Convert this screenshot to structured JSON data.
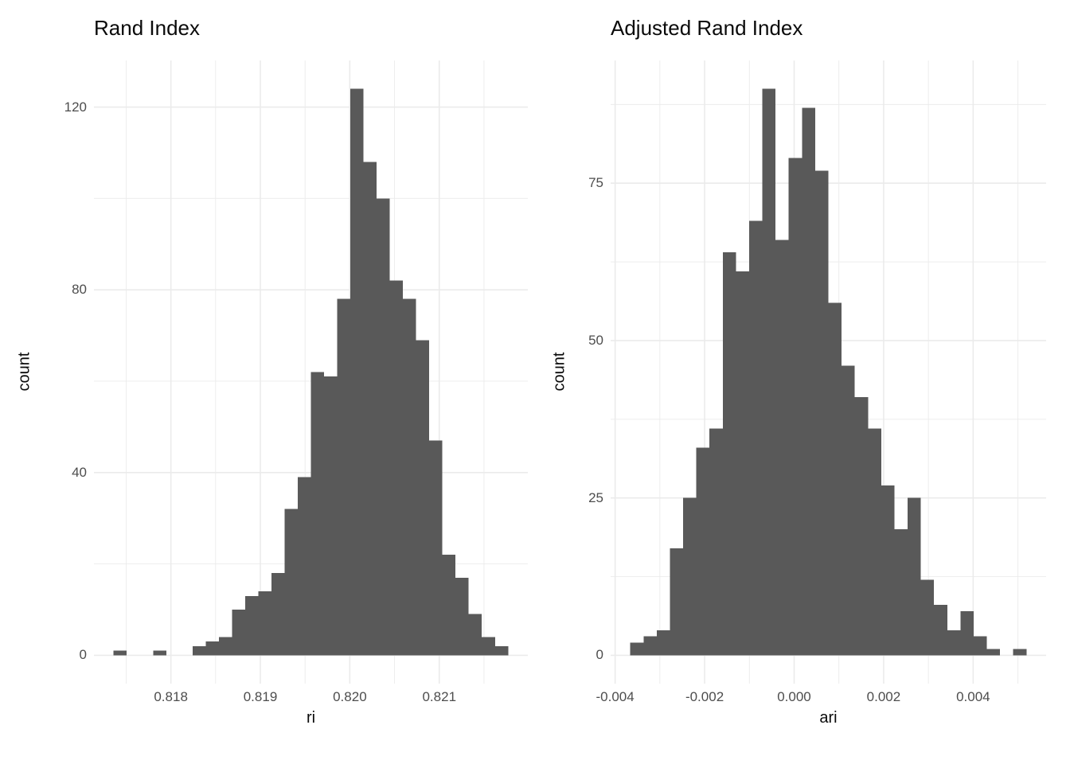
{
  "figure": {
    "background": "#ffffff",
    "grid_color": "#ebebeb",
    "bar_color": "#595959",
    "tick_text_color": "#4d4d4d",
    "title_text_color": "#0a0a0a"
  },
  "chart_data": [
    {
      "type": "bar",
      "subtype": "histogram",
      "title": "Rand Index",
      "xlabel": "ri",
      "ylabel": "count",
      "grid": "major+minor",
      "legend": "none",
      "bin_start": 0.81736,
      "bin_width": 0.000147,
      "counts": [
        1,
        0,
        0,
        1,
        0,
        0,
        2,
        3,
        4,
        10,
        13,
        14,
        18,
        32,
        39,
        62,
        61,
        78,
        124,
        108,
        100,
        82,
        78,
        69,
        47,
        22,
        17,
        9,
        4,
        2
      ],
      "total_count": 1000,
      "peak_count": 124,
      "x_tick_values": [
        0.818,
        0.819,
        0.82,
        0.821
      ],
      "x_tick_labels": [
        "0.818",
        "0.819",
        "0.820",
        "0.821"
      ],
      "y_tick_values": [
        0,
        40,
        80,
        120
      ],
      "y_tick_labels": [
        "0",
        "40",
        "80",
        "120"
      ],
      "xlim": [
        0.81714,
        0.82199
      ],
      "ylim": [
        0,
        130
      ]
    },
    {
      "type": "bar",
      "subtype": "histogram",
      "title": "Adjusted Rand Index",
      "xlabel": "ari",
      "ylabel": "count",
      "grid": "major+minor",
      "legend": "none",
      "bin_start": -0.00366,
      "bin_width": 0.000295,
      "counts": [
        2,
        3,
        4,
        17,
        25,
        33,
        36,
        64,
        61,
        69,
        90,
        66,
        79,
        87,
        77,
        56,
        46,
        41,
        36,
        27,
        20,
        25,
        12,
        8,
        4,
        7,
        3,
        1,
        0,
        1
      ],
      "total_count": 1000,
      "peak_count": 90,
      "x_tick_values": [
        -0.004,
        -0.002,
        0.0,
        0.002,
        0.004
      ],
      "x_tick_labels": [
        "-0.004",
        "-0.002",
        "0.000",
        "0.002",
        "0.004"
      ],
      "y_tick_values": [
        0,
        25,
        50,
        75
      ],
      "y_tick_labels": [
        "0",
        "25",
        "50",
        "75"
      ],
      "xlim": [
        -0.0041,
        0.00563
      ],
      "ylim": [
        0,
        94
      ]
    }
  ]
}
